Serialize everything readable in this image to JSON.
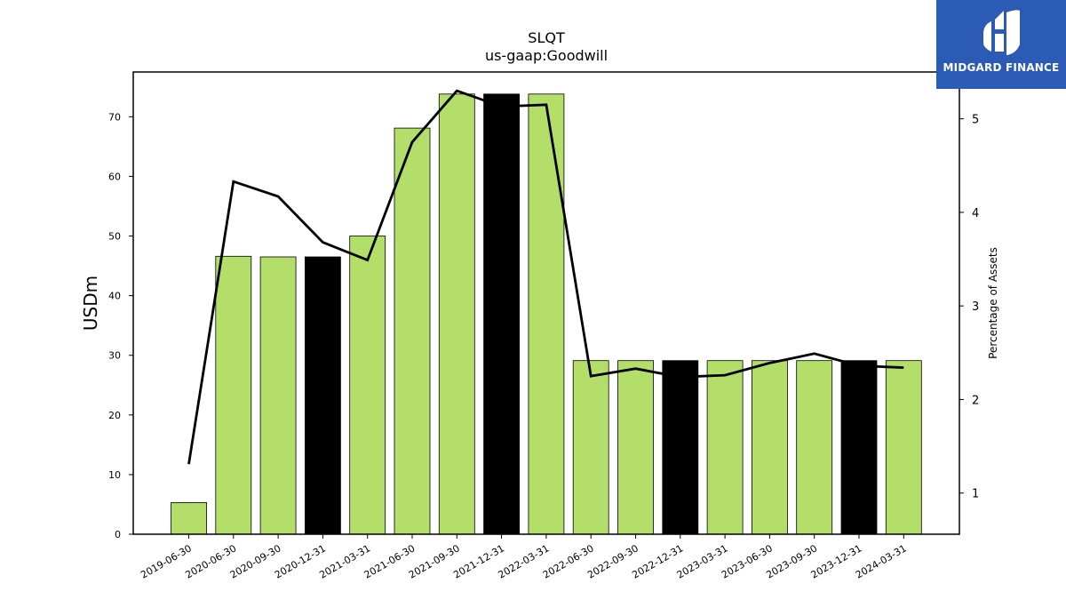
{
  "chart_data": {
    "type": "bar",
    "title": "SLQT",
    "subtitle": "us-gaap:Goodwill",
    "ylabel": "USDm",
    "y2label": "Percentage of Assets",
    "ylim": [
      0,
      77.5
    ],
    "y2lim": [
      0.56,
      5.5
    ],
    "yticks": [
      0,
      10,
      20,
      30,
      40,
      50,
      60,
      70
    ],
    "y2ticks": [
      1,
      2,
      3,
      4,
      5
    ],
    "categories": [
      "2019-06-30",
      "2020-06-30",
      "2020-09-30",
      "2020-12-31",
      "2021-03-31",
      "2021-06-30",
      "2021-09-30",
      "2021-12-31",
      "2022-03-31",
      "2022-06-30",
      "2022-09-30",
      "2022-12-31",
      "2023-03-31",
      "2023-06-30",
      "2023-09-30",
      "2023-12-31",
      "2024-03-31"
    ],
    "series": [
      {
        "type": "bar",
        "values": [
          5.3,
          46.6,
          46.5,
          46.5,
          50.0,
          68.1,
          73.8,
          73.8,
          73.8,
          29.1,
          29.1,
          29.1,
          29.1,
          29.1,
          29.1,
          29.1,
          29.1
        ],
        "highlight": [
          false,
          false,
          false,
          true,
          false,
          false,
          false,
          true,
          false,
          false,
          false,
          true,
          false,
          false,
          false,
          true,
          false
        ],
        "color": "#b3de69",
        "highlight_color": "#000000"
      },
      {
        "type": "line",
        "axis": "right",
        "values": [
          1.31,
          4.33,
          4.17,
          3.68,
          3.49,
          4.75,
          5.3,
          5.13,
          5.15,
          2.25,
          2.33,
          2.24,
          2.26,
          2.39,
          2.49,
          2.36,
          2.34
        ],
        "color": "#000000"
      }
    ],
    "grid": false,
    "legend": "none"
  },
  "logo": {
    "text": "MIDGARD FINANCE",
    "bg_color": "#2b5bb5"
  }
}
